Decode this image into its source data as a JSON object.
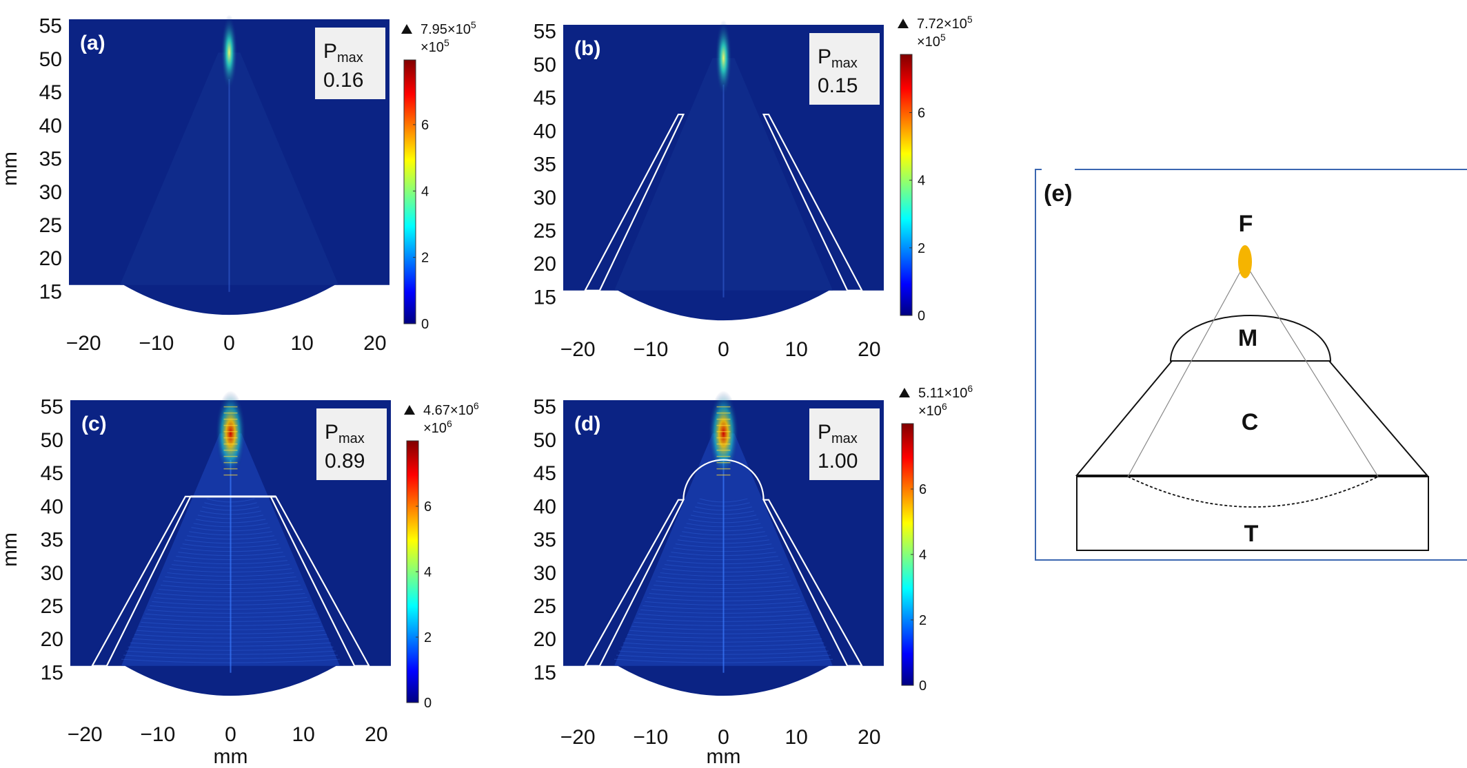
{
  "chart_data": [
    {
      "id": "a",
      "type": "heatmap",
      "panel_label": "(a)",
      "pmax_label": "P",
      "pmax_sub": "max",
      "pmax_value": "0.16",
      "colorbar_top_label": "7.95×10",
      "colorbar_top_exp": "5",
      "colorbar_unit": "×10",
      "colorbar_unit_exp": "5",
      "colorbar_ticks": [
        0,
        2,
        4,
        6
      ],
      "colorbar_max": 7.95,
      "xticks": [
        -20,
        -10,
        0,
        10,
        20
      ],
      "yticks": [
        15,
        20,
        25,
        30,
        35,
        40,
        45,
        50,
        55
      ],
      "xlim": [
        -22,
        22
      ],
      "ylim": [
        11,
        56
      ],
      "xlabel": "",
      "ylabel": "mm",
      "focus_mm": 51,
      "has_cone": false,
      "has_collimator_top": false,
      "has_dome": false
    },
    {
      "id": "b",
      "type": "heatmap",
      "panel_label": "(b)",
      "pmax_label": "P",
      "pmax_sub": "max",
      "pmax_value": "0.15",
      "colorbar_top_label": "7.72×10",
      "colorbar_top_exp": "5",
      "colorbar_unit": "×10",
      "colorbar_unit_exp": "5",
      "colorbar_ticks": [
        0,
        2,
        4,
        6
      ],
      "colorbar_max": 7.72,
      "xticks": [
        -20,
        -10,
        0,
        10,
        20
      ],
      "yticks": [
        15,
        20,
        25,
        30,
        35,
        40,
        45,
        50,
        55
      ],
      "xlim": [
        -22,
        22
      ],
      "ylim": [
        11,
        56
      ],
      "xlabel": "",
      "ylabel": "",
      "focus_mm": 51,
      "has_cone": true,
      "cone_top_mm": 42.5,
      "cone_top_half_width_mm": 5.5,
      "cone_bottom_half_width_mm": 17,
      "has_collimator_top": false,
      "has_dome": false
    },
    {
      "id": "c",
      "type": "heatmap",
      "panel_label": "(c)",
      "pmax_label": "P",
      "pmax_sub": "max",
      "pmax_value": "0.89",
      "colorbar_top_label": "4.67×10",
      "colorbar_top_exp": "6",
      "colorbar_unit": "×10",
      "colorbar_unit_exp": "6",
      "colorbar_ticks": [
        0,
        2,
        4,
        6
      ],
      "colorbar_max": 8,
      "xticks": [
        -20,
        -10,
        0,
        10,
        20
      ],
      "yticks": [
        15,
        20,
        25,
        30,
        35,
        40,
        45,
        50,
        55
      ],
      "xlim": [
        -22,
        22
      ],
      "ylim": [
        11,
        56
      ],
      "xlabel": "mm",
      "ylabel": "mm",
      "focus_mm": 51,
      "has_cone": true,
      "cone_top_mm": 41.5,
      "cone_top_half_width_mm": 5.5,
      "cone_bottom_half_width_mm": 17,
      "has_collimator_top": true,
      "has_dome": false
    },
    {
      "id": "d",
      "type": "heatmap",
      "panel_label": "(d)",
      "pmax_label": "P",
      "pmax_sub": "max",
      "pmax_value": "1.00",
      "colorbar_top_label": "5.11×10",
      "colorbar_top_exp": "6",
      "colorbar_unit": "×10",
      "colorbar_unit_exp": "6",
      "colorbar_ticks": [
        0,
        2,
        4,
        6
      ],
      "colorbar_max": 8,
      "xticks": [
        -20,
        -10,
        0,
        10,
        20
      ],
      "yticks": [
        15,
        20,
        25,
        30,
        35,
        40,
        45,
        50,
        55
      ],
      "xlim": [
        -22,
        22
      ],
      "ylim": [
        11,
        56
      ],
      "xlabel": "mm",
      "ylabel": "",
      "focus_mm": 51,
      "has_cone": true,
      "cone_top_mm": 41,
      "cone_top_half_width_mm": 5.5,
      "cone_bottom_half_width_mm": 17,
      "has_collimator_top": false,
      "has_dome": true
    }
  ],
  "colormap": [
    "#000080",
    "#0000ff",
    "#00ffff",
    "#ffff00",
    "#ff0000",
    "#800000"
  ],
  "background_color": "#0b2384",
  "schematic": {
    "panel_label": "(e)",
    "labels": [
      "F",
      "M",
      "C",
      "T"
    ],
    "focus_color": "#f5b400",
    "frame_color": "#3a66b0"
  }
}
